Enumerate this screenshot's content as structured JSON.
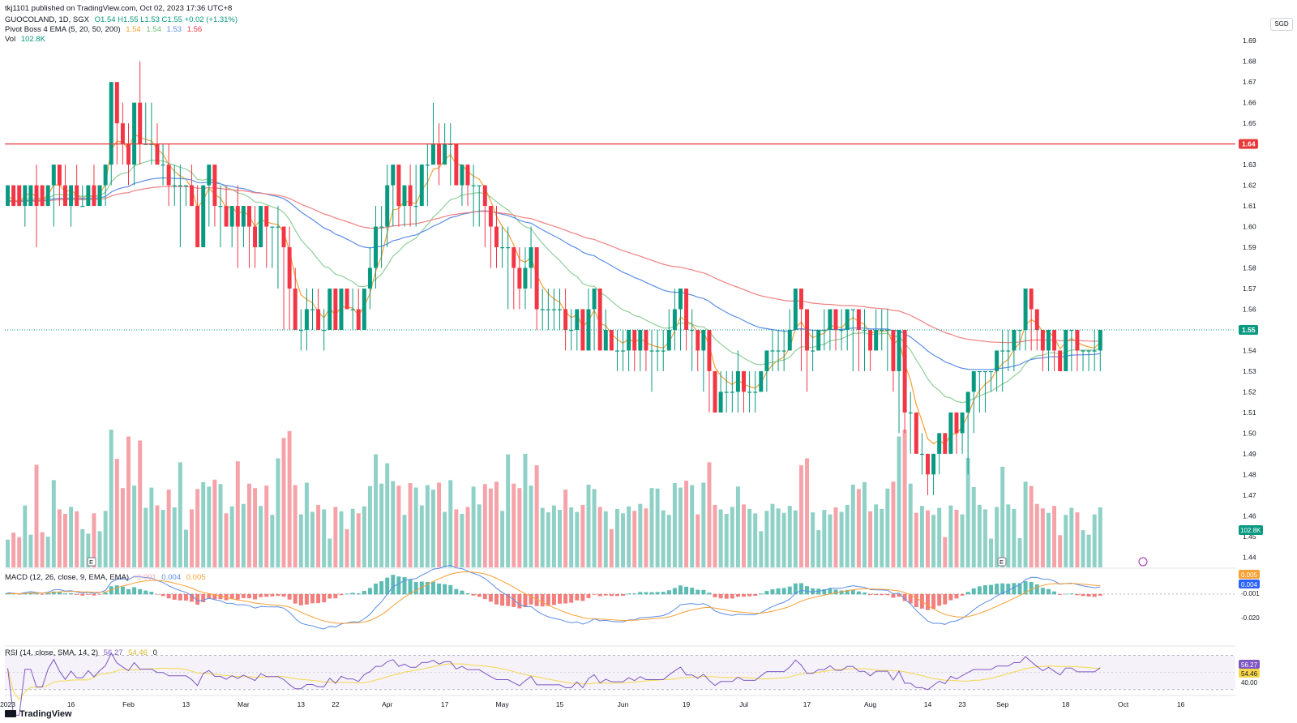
{
  "header": {
    "published": "tkj1101 published on TradingView.com, Oct 02, 2023 17:36 UTC+8",
    "symbol": "GUOCOLAND, 1D, SGX",
    "ohlc": "O1.54 H1.55 L1.53 C1.55 +0.02 (+1.31%)",
    "indicator_label": "Pivot Boss 4 EMA (5, 20, 50, 200)",
    "ema_values": [
      "1.54",
      "1.54",
      "1.53",
      "1.56"
    ],
    "vol_label": "Vol",
    "vol_value": "102.8K",
    "currency": "SGD"
  },
  "macd": {
    "label": "MACD (12, 26, close, 9, EMA, EMA)",
    "values": [
      "-0.001",
      "0.004",
      "0.005"
    ]
  },
  "rsi": {
    "label": "RSI (14, close, SMA, 14, 2)",
    "values": [
      "56.27",
      "54.46",
      "0"
    ]
  },
  "branding": {
    "logo_text": "TradingView"
  },
  "colors": {
    "up": "#089981",
    "down": "#f23645",
    "vol_up": "#8fd1c6",
    "vol_down": "#f5a3a9",
    "ema5": "#f7a034",
    "ema20": "#8fcf9a",
    "ema50": "#5b8ee6",
    "ema200": "#f08080",
    "macd_line": "#5b8ee6",
    "signal_line": "#f7a034",
    "rsi_line": "#7e57c2",
    "rsi_ma": "#f5d84a",
    "hline": "#e83a3a"
  },
  "chart_data": {
    "type": "candlestick",
    "price_axis": {
      "ylim": [
        1.435,
        1.705
      ],
      "ticks": [
        "1.69",
        "1.68",
        "1.67",
        "1.66",
        "1.65",
        "1.64",
        "1.63",
        "1.62",
        "1.61",
        "1.60",
        "1.59",
        "1.58",
        "1.57",
        "1.56",
        "1.55",
        "1.54",
        "1.53",
        "1.52",
        "1.51",
        "1.50",
        "1.49",
        "1.48",
        "1.47",
        "1.46",
        "1.45",
        "1.44"
      ],
      "horizontal_line": {
        "value": 1.64,
        "label": "1.64"
      },
      "last_price": {
        "value": 1.55,
        "label": "1.55"
      },
      "volume_label": "102.8K"
    },
    "x_labels": [
      "2023",
      "16",
      "Feb",
      "13",
      "Mar",
      "13",
      "22",
      "Apr",
      "17",
      "May",
      "15",
      "Jun",
      "19",
      "Jul",
      "17",
      "Aug",
      "14",
      "23",
      "Sep",
      "18",
      "Oct",
      "16"
    ],
    "x_label_sessions": [
      0,
      11,
      21,
      31,
      41,
      51,
      57,
      66,
      76,
      86,
      96,
      107,
      118,
      128,
      139,
      150,
      160,
      166,
      173,
      184,
      194,
      204
    ],
    "sessions_shown": 214,
    "candles": {
      "open": [
        1.61,
        1.62,
        1.62,
        1.61,
        1.61,
        1.62,
        1.62,
        1.61,
        1.62,
        1.63,
        1.62,
        1.61,
        1.62,
        1.61,
        1.61,
        1.62,
        1.61,
        1.62,
        1.63,
        1.67,
        1.65,
        1.64,
        1.63,
        1.66,
        1.64,
        1.64,
        1.64,
        1.63,
        1.63,
        1.62,
        1.62,
        1.62,
        1.62,
        1.61,
        1.59,
        1.62,
        1.63,
        1.61,
        1.61,
        1.6,
        1.61,
        1.6,
        1.61,
        1.6,
        1.59,
        1.61,
        1.6,
        1.6,
        1.6,
        1.59,
        1.57,
        1.55,
        1.55,
        1.56,
        1.56,
        1.55,
        1.55,
        1.57,
        1.55,
        1.57,
        1.56,
        1.56,
        1.55,
        1.57,
        1.58,
        1.6,
        1.6,
        1.62,
        1.63,
        1.61,
        1.62,
        1.61,
        1.61,
        1.63,
        1.63,
        1.64,
        1.63,
        1.64,
        1.64,
        1.62,
        1.63,
        1.62,
        1.62,
        1.62,
        1.61,
        1.6,
        1.59,
        1.59,
        1.59,
        1.58,
        1.57,
        1.58,
        1.59,
        1.56,
        1.56,
        1.56,
        1.56,
        1.56,
        1.55,
        1.55,
        1.56,
        1.54,
        1.56,
        1.57,
        1.54,
        1.55,
        1.54,
        1.54,
        1.54,
        1.55,
        1.54,
        1.55,
        1.54,
        1.54,
        1.54,
        1.54,
        1.55,
        1.56,
        1.57,
        1.55,
        1.55,
        1.54,
        1.55,
        1.53,
        1.51,
        1.52,
        1.52,
        1.52,
        1.53,
        1.52,
        1.52,
        1.52,
        1.53,
        1.54,
        1.54,
        1.54,
        1.54,
        1.55,
        1.57,
        1.56,
        1.54,
        1.54,
        1.55,
        1.55,
        1.56,
        1.55,
        1.55,
        1.56,
        1.56,
        1.55,
        1.55,
        1.54,
        1.55,
        1.55,
        1.55,
        1.53,
        1.55,
        1.51,
        1.51,
        1.49,
        1.49,
        1.48,
        1.49,
        1.5,
        1.49,
        1.51,
        1.5,
        1.51,
        1.52,
        1.53,
        1.53,
        1.53,
        1.53,
        1.54,
        1.54,
        1.54,
        1.55,
        1.55,
        1.57,
        1.56,
        1.55,
        1.54,
        1.55,
        1.54,
        1.53,
        1.55,
        1.55,
        1.54,
        1.54,
        1.54,
        1.54
      ],
      "high": [
        1.62,
        1.62,
        1.62,
        1.62,
        1.62,
        1.63,
        1.62,
        1.62,
        1.63,
        1.63,
        1.63,
        1.62,
        1.63,
        1.62,
        1.62,
        1.63,
        1.62,
        1.63,
        1.67,
        1.67,
        1.66,
        1.65,
        1.65,
        1.68,
        1.66,
        1.66,
        1.65,
        1.64,
        1.64,
        1.63,
        1.63,
        1.62,
        1.63,
        1.62,
        1.62,
        1.63,
        1.63,
        1.62,
        1.62,
        1.61,
        1.62,
        1.61,
        1.61,
        1.61,
        1.61,
        1.61,
        1.6,
        1.61,
        1.6,
        1.6,
        1.58,
        1.56,
        1.57,
        1.57,
        1.57,
        1.56,
        1.56,
        1.57,
        1.57,
        1.57,
        1.57,
        1.57,
        1.57,
        1.59,
        1.61,
        1.61,
        1.63,
        1.63,
        1.63,
        1.62,
        1.63,
        1.63,
        1.63,
        1.64,
        1.66,
        1.65,
        1.65,
        1.65,
        1.64,
        1.63,
        1.63,
        1.63,
        1.62,
        1.62,
        1.61,
        1.61,
        1.6,
        1.6,
        1.59,
        1.59,
        1.59,
        1.6,
        1.59,
        1.57,
        1.57,
        1.57,
        1.57,
        1.57,
        1.56,
        1.56,
        1.56,
        1.57,
        1.57,
        1.57,
        1.56,
        1.55,
        1.55,
        1.55,
        1.55,
        1.55,
        1.55,
        1.55,
        1.55,
        1.55,
        1.55,
        1.56,
        1.57,
        1.57,
        1.57,
        1.56,
        1.55,
        1.55,
        1.55,
        1.53,
        1.53,
        1.53,
        1.53,
        1.54,
        1.53,
        1.53,
        1.53,
        1.53,
        1.54,
        1.55,
        1.55,
        1.55,
        1.56,
        1.57,
        1.57,
        1.56,
        1.55,
        1.55,
        1.56,
        1.56,
        1.56,
        1.56,
        1.56,
        1.56,
        1.56,
        1.56,
        1.55,
        1.56,
        1.56,
        1.56,
        1.55,
        1.55,
        1.55,
        1.52,
        1.51,
        1.5,
        1.49,
        1.49,
        1.5,
        1.5,
        1.51,
        1.51,
        1.51,
        1.52,
        1.53,
        1.53,
        1.53,
        1.53,
        1.54,
        1.55,
        1.55,
        1.55,
        1.55,
        1.57,
        1.57,
        1.56,
        1.55,
        1.55,
        1.55,
        1.54,
        1.55,
        1.55,
        1.55,
        1.54,
        1.54,
        1.55,
        1.55
      ],
      "low": [
        1.61,
        1.61,
        1.61,
        1.6,
        1.61,
        1.59,
        1.61,
        1.61,
        1.6,
        1.61,
        1.61,
        1.6,
        1.61,
        1.61,
        1.61,
        1.61,
        1.61,
        1.61,
        1.62,
        1.63,
        1.63,
        1.62,
        1.62,
        1.63,
        1.64,
        1.63,
        1.63,
        1.62,
        1.61,
        1.61,
        1.59,
        1.61,
        1.61,
        1.59,
        1.59,
        1.6,
        1.6,
        1.59,
        1.6,
        1.59,
        1.58,
        1.59,
        1.58,
        1.58,
        1.59,
        1.58,
        1.58,
        1.57,
        1.55,
        1.55,
        1.55,
        1.54,
        1.54,
        1.55,
        1.55,
        1.54,
        1.55,
        1.55,
        1.55,
        1.56,
        1.55,
        1.55,
        1.55,
        1.56,
        1.57,
        1.58,
        1.59,
        1.6,
        1.6,
        1.6,
        1.6,
        1.6,
        1.61,
        1.61,
        1.63,
        1.62,
        1.63,
        1.62,
        1.62,
        1.61,
        1.61,
        1.6,
        1.6,
        1.59,
        1.58,
        1.58,
        1.58,
        1.56,
        1.56,
        1.56,
        1.56,
        1.57,
        1.55,
        1.55,
        1.55,
        1.55,
        1.55,
        1.54,
        1.54,
        1.54,
        1.54,
        1.54,
        1.54,
        1.55,
        1.54,
        1.54,
        1.53,
        1.53,
        1.53,
        1.53,
        1.53,
        1.53,
        1.52,
        1.53,
        1.53,
        1.54,
        1.54,
        1.54,
        1.54,
        1.53,
        1.53,
        1.52,
        1.51,
        1.51,
        1.51,
        1.51,
        1.51,
        1.51,
        1.51,
        1.51,
        1.51,
        1.52,
        1.52,
        1.53,
        1.53,
        1.53,
        1.54,
        1.55,
        1.53,
        1.52,
        1.53,
        1.54,
        1.54,
        1.54,
        1.54,
        1.54,
        1.54,
        1.53,
        1.53,
        1.53,
        1.53,
        1.54,
        1.54,
        1.53,
        1.52,
        1.5,
        1.5,
        1.49,
        1.49,
        1.48,
        1.47,
        1.47,
        1.48,
        1.49,
        1.49,
        1.49,
        1.49,
        1.48,
        1.5,
        1.51,
        1.51,
        1.52,
        1.52,
        1.52,
        1.53,
        1.53,
        1.54,
        1.54,
        1.54,
        1.54,
        1.53,
        1.53,
        1.53,
        1.53,
        1.53,
        1.53,
        1.53,
        1.53,
        1.53,
        1.53,
        1.53
      ],
      "close": [
        1.62,
        1.61,
        1.61,
        1.62,
        1.62,
        1.61,
        1.61,
        1.62,
        1.63,
        1.62,
        1.61,
        1.62,
        1.61,
        1.61,
        1.62,
        1.61,
        1.62,
        1.63,
        1.67,
        1.65,
        1.64,
        1.63,
        1.66,
        1.64,
        1.64,
        1.64,
        1.63,
        1.63,
        1.62,
        1.62,
        1.62,
        1.62,
        1.61,
        1.59,
        1.62,
        1.63,
        1.61,
        1.61,
        1.6,
        1.61,
        1.6,
        1.61,
        1.6,
        1.59,
        1.61,
        1.6,
        1.6,
        1.6,
        1.59,
        1.57,
        1.55,
        1.55,
        1.56,
        1.56,
        1.55,
        1.55,
        1.57,
        1.55,
        1.57,
        1.56,
        1.56,
        1.55,
        1.57,
        1.58,
        1.6,
        1.6,
        1.62,
        1.63,
        1.61,
        1.62,
        1.61,
        1.61,
        1.63,
        1.63,
        1.64,
        1.63,
        1.64,
        1.64,
        1.62,
        1.63,
        1.62,
        1.62,
        1.62,
        1.61,
        1.6,
        1.59,
        1.59,
        1.59,
        1.58,
        1.57,
        1.58,
        1.59,
        1.56,
        1.56,
        1.56,
        1.56,
        1.56,
        1.55,
        1.55,
        1.56,
        1.54,
        1.56,
        1.57,
        1.54,
        1.55,
        1.54,
        1.54,
        1.54,
        1.55,
        1.54,
        1.55,
        1.54,
        1.54,
        1.54,
        1.54,
        1.55,
        1.56,
        1.57,
        1.55,
        1.55,
        1.54,
        1.55,
        1.53,
        1.51,
        1.52,
        1.52,
        1.52,
        1.53,
        1.52,
        1.52,
        1.52,
        1.53,
        1.54,
        1.54,
        1.54,
        1.54,
        1.55,
        1.57,
        1.56,
        1.54,
        1.54,
        1.55,
        1.55,
        1.56,
        1.55,
        1.55,
        1.56,
        1.56,
        1.55,
        1.55,
        1.54,
        1.55,
        1.55,
        1.55,
        1.53,
        1.55,
        1.51,
        1.51,
        1.49,
        1.49,
        1.48,
        1.49,
        1.5,
        1.49,
        1.51,
        1.5,
        1.51,
        1.52,
        1.53,
        1.53,
        1.53,
        1.53,
        1.54,
        1.54,
        1.54,
        1.55,
        1.55,
        1.57,
        1.56,
        1.55,
        1.54,
        1.55,
        1.54,
        1.53,
        1.55,
        1.55,
        1.54,
        1.54,
        1.54,
        1.54,
        1.55
      ]
    },
    "ema_series": [
      {
        "name": "EMA 5",
        "values_start": 1.612,
        "last": 1.54
      },
      {
        "name": "EMA 20",
        "values_start": 1.612,
        "last": 1.54
      },
      {
        "name": "EMA 50",
        "values_start": 1.612,
        "last": 1.53
      },
      {
        "name": "EMA 200",
        "values_start": 1.61,
        "last": 1.56
      }
    ],
    "macd_panel": {
      "ylim": [
        -0.025,
        0.012
      ],
      "ticks": [
        "0.005",
        "0.004",
        "-0.001",
        "-0.020"
      ]
    },
    "rsi_panel": {
      "ylim": [
        25,
        80
      ],
      "ticks": [
        "56.27",
        "54.46",
        "40.00"
      ],
      "band": [
        30,
        70
      ]
    }
  }
}
